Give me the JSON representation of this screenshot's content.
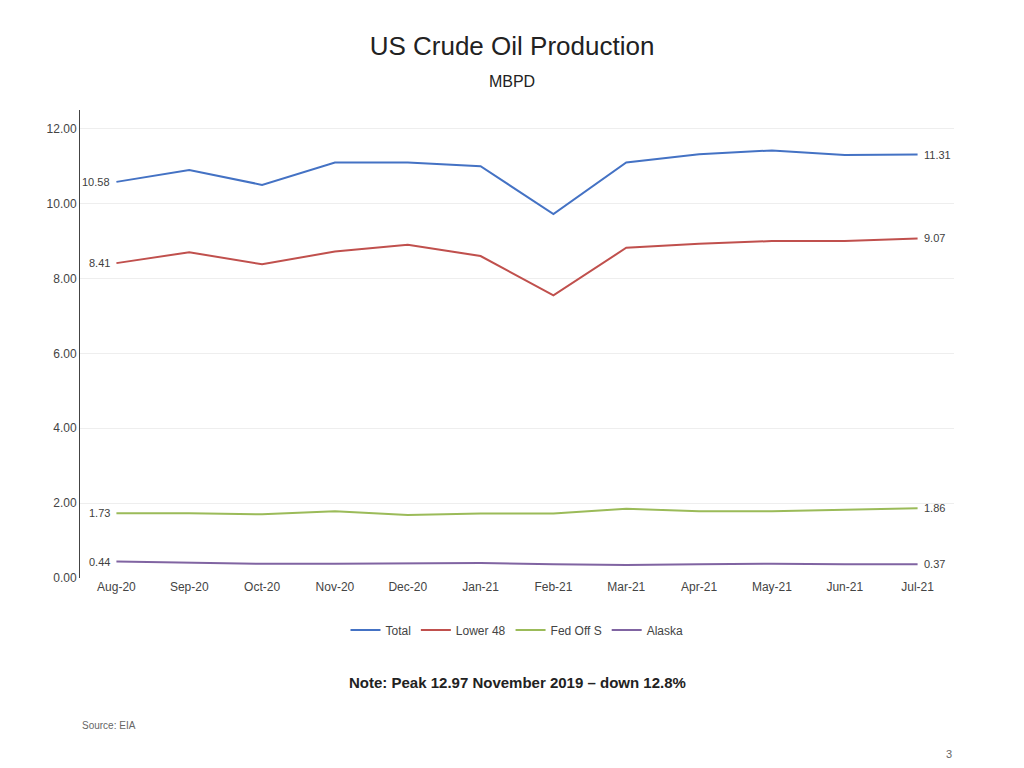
{
  "chart_data": {
    "type": "line",
    "title": "US Crude Oil Production",
    "subtitle": "MBPD",
    "categories": [
      "Aug-20",
      "Sep-20",
      "Oct-20",
      "Nov-20",
      "Dec-20",
      "Jan-21",
      "Feb-21",
      "Mar-21",
      "Apr-21",
      "May-21",
      "Jun-21",
      "Jul-21"
    ],
    "series": [
      {
        "name": "Total",
        "color": "#4472C4",
        "values": [
          10.58,
          10.9,
          10.5,
          11.1,
          11.1,
          11.0,
          9.72,
          11.1,
          11.32,
          11.42,
          11.3,
          11.31
        ],
        "value_labels": [
          "10.58",
          null,
          null,
          null,
          null,
          null,
          null,
          null,
          null,
          null,
          null,
          "11.31"
        ]
      },
      {
        "name": "Lower 48",
        "color": "#C0504D",
        "values": [
          8.41,
          8.7,
          8.38,
          8.72,
          8.9,
          8.6,
          7.55,
          8.82,
          8.93,
          9.0,
          9.0,
          9.07
        ],
        "value_labels": [
          "8.41",
          null,
          null,
          null,
          null,
          null,
          null,
          null,
          null,
          null,
          null,
          "9.07"
        ]
      },
      {
        "name": "Fed Off S",
        "color": "#9BBB59",
        "values": [
          1.73,
          1.73,
          1.7,
          1.78,
          1.68,
          1.72,
          1.72,
          1.85,
          1.78,
          1.78,
          1.82,
          1.86
        ],
        "value_labels": [
          "1.73",
          null,
          null,
          null,
          null,
          null,
          null,
          null,
          null,
          null,
          null,
          "1.86"
        ]
      },
      {
        "name": "Alaska",
        "color": "#8064A2",
        "values": [
          0.44,
          0.4,
          0.38,
          0.38,
          0.4,
          0.4,
          0.37,
          0.35,
          0.37,
          0.38,
          0.37,
          0.37
        ],
        "value_labels": [
          "0.44",
          null,
          null,
          null,
          null,
          null,
          null,
          null,
          null,
          null,
          null,
          "0.37"
        ]
      }
    ],
    "ylim": [
      0.0,
      12.5
    ],
    "yticks": [
      {
        "value": 0,
        "label": "0.00"
      },
      {
        "value": 2,
        "label": "2.00"
      },
      {
        "value": 4,
        "label": "4.00"
      },
      {
        "value": 6,
        "label": "6.00"
      },
      {
        "value": 8,
        "label": "8.00"
      },
      {
        "value": 10,
        "label": "10.00"
      },
      {
        "value": 12,
        "label": "12.00"
      }
    ],
    "grid": true,
    "legend": "bottom",
    "annotations": [
      "Note: Peak 12.97 November 2019 – down 12.8%",
      "Source: EIA",
      "3"
    ]
  }
}
